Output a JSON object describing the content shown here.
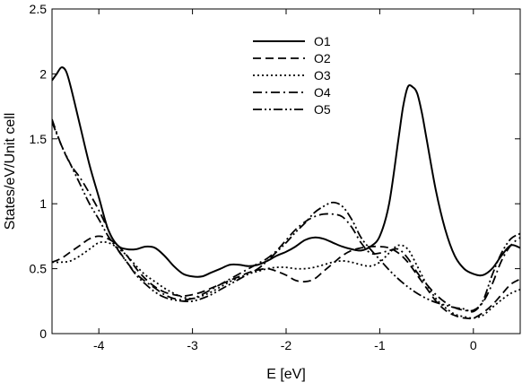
{
  "chart_data": {
    "type": "line",
    "title": "",
    "xlabel": "E [eV]",
    "ylabel": "States/eV/Unit cell",
    "xlim": [
      -4.5,
      0.5
    ],
    "ylim": [
      0,
      2.5
    ],
    "x_ticks": [
      -4,
      -3,
      -2,
      -1,
      0
    ],
    "x_tick_labels": [
      "-4",
      "-3",
      "-2",
      "-1",
      "0"
    ],
    "y_ticks": [
      0,
      0.5,
      1,
      1.5,
      2,
      2.5
    ],
    "y_tick_labels": [
      "0",
      "0.5",
      "1",
      "1.5",
      "2",
      "2.5"
    ],
    "grid": false,
    "legend_position": "top-center",
    "series": [
      {
        "name": "O1",
        "dash": "solid",
        "x": [
          -4.5,
          -4.45,
          -4.4,
          -4.35,
          -4.3,
          -4.2,
          -4.1,
          -4.0,
          -3.9,
          -3.8,
          -3.7,
          -3.6,
          -3.5,
          -3.4,
          -3.3,
          -3.2,
          -3.1,
          -3.0,
          -2.9,
          -2.8,
          -2.7,
          -2.6,
          -2.5,
          -2.4,
          -2.3,
          -2.2,
          -2.1,
          -2.0,
          -1.9,
          -1.8,
          -1.7,
          -1.6,
          -1.5,
          -1.4,
          -1.3,
          -1.2,
          -1.1,
          -1.0,
          -0.9,
          -0.8,
          -0.75,
          -0.7,
          -0.65,
          -0.6,
          -0.55,
          -0.5,
          -0.4,
          -0.3,
          -0.2,
          -0.1,
          0.0,
          0.1,
          0.2,
          0.3,
          0.4,
          0.5
        ],
        "y": [
          1.95,
          2.0,
          2.05,
          2.02,
          1.9,
          1.6,
          1.3,
          1.05,
          0.8,
          0.68,
          0.65,
          0.65,
          0.67,
          0.66,
          0.6,
          0.52,
          0.46,
          0.44,
          0.44,
          0.47,
          0.5,
          0.53,
          0.53,
          0.52,
          0.53,
          0.56,
          0.6,
          0.63,
          0.67,
          0.72,
          0.74,
          0.73,
          0.7,
          0.67,
          0.65,
          0.64,
          0.67,
          0.75,
          1.0,
          1.5,
          1.75,
          1.9,
          1.9,
          1.85,
          1.7,
          1.5,
          1.1,
          0.8,
          0.6,
          0.5,
          0.46,
          0.45,
          0.5,
          0.6,
          0.68,
          0.66
        ]
      },
      {
        "name": "O2",
        "dash": "dashed",
        "x": [
          -4.5,
          -4.4,
          -4.3,
          -4.2,
          -4.1,
          -4.0,
          -3.9,
          -3.8,
          -3.7,
          -3.6,
          -3.5,
          -3.4,
          -3.3,
          -3.2,
          -3.1,
          -3.0,
          -2.9,
          -2.8,
          -2.7,
          -2.6,
          -2.5,
          -2.4,
          -2.3,
          -2.2,
          -2.1,
          -2.0,
          -1.9,
          -1.8,
          -1.7,
          -1.6,
          -1.5,
          -1.4,
          -1.3,
          -1.2,
          -1.1,
          -1.0,
          -0.9,
          -0.8,
          -0.7,
          -0.6,
          -0.5,
          -0.4,
          -0.3,
          -0.2,
          -0.1,
          0.0,
          0.1,
          0.2,
          0.3,
          0.4,
          0.5
        ],
        "y": [
          0.55,
          0.58,
          0.63,
          0.68,
          0.73,
          0.75,
          0.73,
          0.68,
          0.6,
          0.5,
          0.42,
          0.36,
          0.32,
          0.3,
          0.29,
          0.3,
          0.32,
          0.35,
          0.38,
          0.41,
          0.44,
          0.47,
          0.49,
          0.5,
          0.48,
          0.45,
          0.41,
          0.4,
          0.42,
          0.48,
          0.54,
          0.6,
          0.64,
          0.66,
          0.67,
          0.67,
          0.66,
          0.62,
          0.55,
          0.45,
          0.35,
          0.25,
          0.18,
          0.14,
          0.12,
          0.12,
          0.16,
          0.22,
          0.3,
          0.38,
          0.42
        ]
      },
      {
        "name": "O3",
        "dash": "dotted",
        "x": [
          -4.5,
          -4.4,
          -4.3,
          -4.2,
          -4.1,
          -4.0,
          -3.9,
          -3.8,
          -3.7,
          -3.6,
          -3.5,
          -3.4,
          -3.3,
          -3.2,
          -3.1,
          -3.0,
          -2.9,
          -2.8,
          -2.7,
          -2.6,
          -2.5,
          -2.4,
          -2.3,
          -2.2,
          -2.1,
          -2.0,
          -1.9,
          -1.8,
          -1.7,
          -1.6,
          -1.5,
          -1.4,
          -1.3,
          -1.2,
          -1.1,
          -1.0,
          -0.9,
          -0.8,
          -0.7,
          -0.6,
          -0.5,
          -0.4,
          -0.3,
          -0.2,
          -0.1,
          0.0,
          0.1,
          0.2,
          0.3,
          0.4,
          0.5
        ],
        "y": [
          0.55,
          0.55,
          0.56,
          0.6,
          0.65,
          0.7,
          0.7,
          0.66,
          0.6,
          0.52,
          0.45,
          0.4,
          0.35,
          0.31,
          0.28,
          0.27,
          0.29,
          0.32,
          0.36,
          0.4,
          0.43,
          0.46,
          0.48,
          0.5,
          0.51,
          0.51,
          0.5,
          0.5,
          0.51,
          0.53,
          0.55,
          0.56,
          0.55,
          0.53,
          0.52,
          0.55,
          0.62,
          0.68,
          0.65,
          0.52,
          0.38,
          0.27,
          0.2,
          0.15,
          0.13,
          0.12,
          0.14,
          0.2,
          0.26,
          0.31,
          0.34
        ]
      },
      {
        "name": "O4",
        "dash": "dashdot",
        "x": [
          -4.5,
          -4.4,
          -4.3,
          -4.2,
          -4.1,
          -4.0,
          -3.9,
          -3.8,
          -3.7,
          -3.6,
          -3.5,
          -3.4,
          -3.3,
          -3.2,
          -3.1,
          -3.0,
          -2.9,
          -2.8,
          -2.7,
          -2.6,
          -2.5,
          -2.4,
          -2.3,
          -2.2,
          -2.1,
          -2.0,
          -1.9,
          -1.8,
          -1.7,
          -1.6,
          -1.5,
          -1.4,
          -1.3,
          -1.2,
          -1.1,
          -1.0,
          -0.9,
          -0.8,
          -0.7,
          -0.6,
          -0.5,
          -0.4,
          -0.3,
          -0.2,
          -0.1,
          0.0,
          0.1,
          0.2,
          0.3,
          0.4,
          0.5
        ],
        "y": [
          1.65,
          1.45,
          1.3,
          1.2,
          1.08,
          0.95,
          0.8,
          0.65,
          0.55,
          0.46,
          0.4,
          0.35,
          0.3,
          0.27,
          0.26,
          0.27,
          0.3,
          0.34,
          0.38,
          0.42,
          0.46,
          0.5,
          0.54,
          0.58,
          0.64,
          0.72,
          0.8,
          0.86,
          0.9,
          0.92,
          0.92,
          0.9,
          0.82,
          0.7,
          0.62,
          0.62,
          0.64,
          0.65,
          0.58,
          0.47,
          0.38,
          0.3,
          0.24,
          0.2,
          0.18,
          0.18,
          0.24,
          0.38,
          0.56,
          0.68,
          0.74
        ]
      },
      {
        "name": "O5",
        "dash": "dashdotdot",
        "x": [
          -4.5,
          -4.4,
          -4.3,
          -4.2,
          -4.1,
          -4.0,
          -3.9,
          -3.8,
          -3.7,
          -3.6,
          -3.5,
          -3.4,
          -3.3,
          -3.2,
          -3.1,
          -3.0,
          -2.9,
          -2.8,
          -2.7,
          -2.6,
          -2.5,
          -2.4,
          -2.3,
          -2.2,
          -2.1,
          -2.0,
          -1.9,
          -1.8,
          -1.7,
          -1.6,
          -1.5,
          -1.4,
          -1.3,
          -1.2,
          -1.1,
          -1.0,
          -0.9,
          -0.8,
          -0.7,
          -0.6,
          -0.5,
          -0.4,
          -0.3,
          -0.2,
          -0.1,
          0.0,
          0.1,
          0.2,
          0.3,
          0.4,
          0.5
        ],
        "y": [
          1.63,
          1.45,
          1.3,
          1.15,
          1.0,
          0.88,
          0.75,
          0.65,
          0.55,
          0.45,
          0.38,
          0.32,
          0.28,
          0.26,
          0.25,
          0.25,
          0.27,
          0.3,
          0.34,
          0.38,
          0.42,
          0.46,
          0.5,
          0.56,
          0.63,
          0.7,
          0.78,
          0.85,
          0.93,
          0.98,
          1.01,
          0.98,
          0.88,
          0.74,
          0.65,
          0.57,
          0.49,
          0.42,
          0.36,
          0.31,
          0.27,
          0.24,
          0.22,
          0.2,
          0.19,
          0.17,
          0.25,
          0.45,
          0.62,
          0.73,
          0.77
        ]
      }
    ]
  }
}
